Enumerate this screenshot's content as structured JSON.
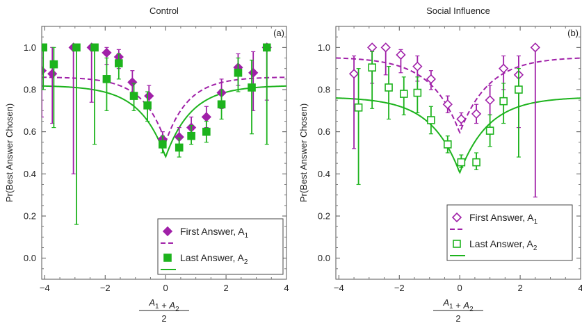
{
  "chart_data": [
    {
      "type": "scatter",
      "title": "Control",
      "panel_label": "(a)",
      "xlabel_numerator": "A1 + A2",
      "xlabel_denominator": "2",
      "ylabel": "Pr(Best Answer Chosen)",
      "xlim": [
        -4.1,
        4
      ],
      "ylim": [
        -0.1,
        1.1
      ],
      "xticks": [
        "-4",
        "-2",
        "0",
        "2",
        "4"
      ],
      "yticks": [
        "0.0",
        "0.2",
        "0.4",
        "0.6",
        "0.8",
        "1.0"
      ],
      "legend_position": "bottom-right",
      "grid": false,
      "marker_style": "filled",
      "series": [
        {
          "name": "First Answer, A1",
          "legend_text": "First Answer, A",
          "legend_subscript": "1",
          "color": "#a020a8",
          "marker": "diamond",
          "fit_line": "dashed",
          "fit": {
            "base": 0.86,
            "dip": 0.31,
            "width": 0.75,
            "center": 0
          },
          "points": [
            {
              "x": -4.1,
              "y": 0.89,
              "lo": 0.67,
              "hi": 1.0
            },
            {
              "x": -3.75,
              "y": 0.875,
              "lo": 0.64,
              "hi": 1.0
            },
            {
              "x": -3.05,
              "y": 1.0,
              "lo": 0.4,
              "hi": 1.0
            },
            {
              "x": -2.45,
              "y": 1.0,
              "lo": 0.74,
              "hi": 1.0
            },
            {
              "x": -1.95,
              "y": 0.975,
              "lo": 0.92,
              "hi": 1.0
            },
            {
              "x": -1.55,
              "y": 0.955,
              "lo": 0.9,
              "hi": 0.99
            },
            {
              "x": -1.1,
              "y": 0.835,
              "lo": 0.77,
              "hi": 0.89
            },
            {
              "x": -0.55,
              "y": 0.77,
              "lo": 0.71,
              "hi": 0.82
            },
            {
              "x": -0.1,
              "y": 0.565,
              "lo": 0.53,
              "hi": 0.6
            },
            {
              "x": 0.45,
              "y": 0.575,
              "lo": 0.53,
              "hi": 0.62
            },
            {
              "x": 0.85,
              "y": 0.62,
              "lo": 0.57,
              "hi": 0.67
            },
            {
              "x": 1.35,
              "y": 0.67,
              "lo": 0.62,
              "hi": 0.72
            },
            {
              "x": 1.85,
              "y": 0.785,
              "lo": 0.71,
              "hi": 0.85
            },
            {
              "x": 2.4,
              "y": 0.905,
              "lo": 0.82,
              "hi": 0.97
            },
            {
              "x": 2.9,
              "y": 0.88,
              "lo": 0.7,
              "hi": 0.98
            },
            {
              "x": 3.35,
              "y": 1.0,
              "lo": 0.75,
              "hi": 1.0
            }
          ]
        },
        {
          "name": "Last Answer, A2",
          "legend_text": "Last Answer, A",
          "legend_subscript": "2",
          "color": "#1db31d",
          "marker": "square",
          "fit_line": "solid",
          "fit": {
            "base": 0.82,
            "dip": 0.34,
            "width": 0.85,
            "center": 0
          },
          "points": [
            {
              "x": -4.05,
              "y": 1.0,
              "lo": 0.8,
              "hi": 1.0
            },
            {
              "x": -3.7,
              "y": 0.92,
              "lo": 0.62,
              "hi": 1.0
            },
            {
              "x": -2.95,
              "y": 1.0,
              "lo": 0.16,
              "hi": 1.0
            },
            {
              "x": -2.35,
              "y": 1.0,
              "lo": 0.54,
              "hi": 1.0
            },
            {
              "x": -1.95,
              "y": 0.85,
              "lo": 0.7,
              "hi": 0.95
            },
            {
              "x": -1.55,
              "y": 0.925,
              "lo": 0.85,
              "hi": 0.97
            },
            {
              "x": -1.05,
              "y": 0.77,
              "lo": 0.7,
              "hi": 0.83
            },
            {
              "x": -0.6,
              "y": 0.725,
              "lo": 0.65,
              "hi": 0.79
            },
            {
              "x": -0.1,
              "y": 0.54,
              "lo": 0.5,
              "hi": 0.58
            },
            {
              "x": 0.45,
              "y": 0.525,
              "lo": 0.48,
              "hi": 0.57
            },
            {
              "x": 0.85,
              "y": 0.58,
              "lo": 0.54,
              "hi": 0.63
            },
            {
              "x": 1.35,
              "y": 0.6,
              "lo": 0.55,
              "hi": 0.65
            },
            {
              "x": 1.85,
              "y": 0.73,
              "lo": 0.66,
              "hi": 0.8
            },
            {
              "x": 2.4,
              "y": 0.88,
              "lo": 0.79,
              "hi": 0.95
            },
            {
              "x": 2.85,
              "y": 0.81,
              "lo": 0.59,
              "hi": 0.94
            },
            {
              "x": 3.35,
              "y": 1.0,
              "lo": 0.54,
              "hi": 1.0
            }
          ]
        }
      ]
    },
    {
      "type": "scatter",
      "title": "Social Influence",
      "panel_label": "(b)",
      "xlabel_numerator": "A1 + A2",
      "xlabel_denominator": "2",
      "ylabel": "Pr(Best Answer Chosen)",
      "xlim": [
        -4.1,
        4
      ],
      "ylim": [
        -0.1,
        1.1
      ],
      "xticks": [
        "-4",
        "-2",
        "0",
        "2",
        "4"
      ],
      "yticks": [
        "0.0",
        "0.2",
        "0.4",
        "0.6",
        "0.8",
        "1.0"
      ],
      "legend_position": "bottom-right",
      "grid": false,
      "marker_style": "open",
      "series": [
        {
          "name": "First Answer, A1",
          "legend_text": "First Answer, A",
          "legend_subscript": "1",
          "color": "#a020a8",
          "marker": "diamond",
          "fit_line": "dashed",
          "fit": {
            "base": 0.955,
            "dip": 0.36,
            "width": 0.95,
            "center": 0
          },
          "points": [
            {
              "x": -3.5,
              "y": 0.875,
              "lo": 0.52,
              "hi": 0.96
            },
            {
              "x": -2.9,
              "y": 1.0,
              "lo": 0.83,
              "hi": 1.0
            },
            {
              "x": -2.45,
              "y": 1.0,
              "lo": 0.87,
              "hi": 1.0
            },
            {
              "x": -1.95,
              "y": 0.965,
              "lo": 0.88,
              "hi": 0.99
            },
            {
              "x": -1.4,
              "y": 0.91,
              "lo": 0.84,
              "hi": 0.96
            },
            {
              "x": -0.95,
              "y": 0.85,
              "lo": 0.8,
              "hi": 0.89
            },
            {
              "x": -0.4,
              "y": 0.73,
              "lo": 0.69,
              "hi": 0.77
            },
            {
              "x": 0.05,
              "y": 0.66,
              "lo": 0.63,
              "hi": 0.69
            },
            {
              "x": 0.55,
              "y": 0.685,
              "lo": 0.64,
              "hi": 0.73
            },
            {
              "x": 1.0,
              "y": 0.75,
              "lo": 0.68,
              "hi": 0.82
            },
            {
              "x": 1.45,
              "y": 0.9,
              "lo": 0.8,
              "hi": 0.96
            },
            {
              "x": 1.95,
              "y": 0.87,
              "lo": 0.62,
              "hi": 0.96
            },
            {
              "x": 2.5,
              "y": 1.0,
              "lo": 0.29,
              "hi": 1.0
            }
          ]
        },
        {
          "name": "Last Answer, A2",
          "legend_text": "Last Answer, A",
          "legend_subscript": "2",
          "color": "#1db31d",
          "marker": "square",
          "fit_line": "solid",
          "fit": {
            "base": 0.765,
            "dip": 0.36,
            "width": 0.95,
            "center": 0
          },
          "points": [
            {
              "x": -3.35,
              "y": 0.715,
              "lo": 0.35,
              "hi": 0.9
            },
            {
              "x": -2.9,
              "y": 0.905,
              "lo": 0.71,
              "hi": 0.98
            },
            {
              "x": -2.35,
              "y": 0.81,
              "lo": 0.66,
              "hi": 0.91
            },
            {
              "x": -1.85,
              "y": 0.78,
              "lo": 0.68,
              "hi": 0.86
            },
            {
              "x": -1.4,
              "y": 0.785,
              "lo": 0.69,
              "hi": 0.86
            },
            {
              "x": -0.95,
              "y": 0.655,
              "lo": 0.59,
              "hi": 0.72
            },
            {
              "x": -0.4,
              "y": 0.54,
              "lo": 0.5,
              "hi": 0.58
            },
            {
              "x": 0.05,
              "y": 0.455,
              "lo": 0.43,
              "hi": 0.49
            },
            {
              "x": 0.55,
              "y": 0.455,
              "lo": 0.42,
              "hi": 0.5
            },
            {
              "x": 1.0,
              "y": 0.605,
              "lo": 0.53,
              "hi": 0.68
            },
            {
              "x": 1.45,
              "y": 0.745,
              "lo": 0.64,
              "hi": 0.83
            },
            {
              "x": 1.95,
              "y": 0.8,
              "lo": 0.48,
              "hi": 0.9
            }
          ]
        }
      ]
    }
  ]
}
